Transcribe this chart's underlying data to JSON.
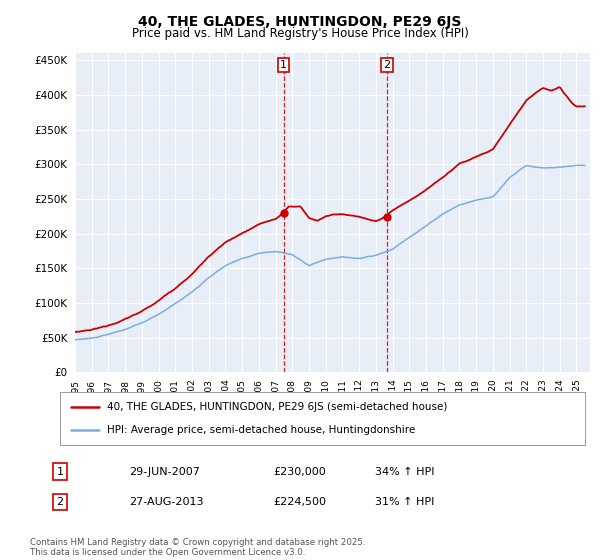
{
  "title": "40, THE GLADES, HUNTINGDON, PE29 6JS",
  "subtitle": "Price paid vs. HM Land Registry's House Price Index (HPI)",
  "legend_label_red": "40, THE GLADES, HUNTINGDON, PE29 6JS (semi-detached house)",
  "legend_label_blue": "HPI: Average price, semi-detached house, Huntingdonshire",
  "sale1_date": "29-JUN-2007",
  "sale1_price": 230000,
  "sale1_pct": "34% ↑ HPI",
  "sale2_date": "27-AUG-2013",
  "sale2_price": 224500,
  "sale2_pct": "31% ↑ HPI",
  "footer": "Contains HM Land Registry data © Crown copyright and database right 2025.\nThis data is licensed under the Open Government Licence v3.0.",
  "ylim": [
    0,
    460000
  ],
  "yticks": [
    0,
    50000,
    100000,
    150000,
    200000,
    250000,
    300000,
    350000,
    400000,
    450000
  ],
  "background_color": "#ffffff",
  "plot_bg_color": "#e8eef8",
  "red_color": "#cc0000",
  "blue_color": "#7aadde",
  "sale1_x_year": 2007.49,
  "sale2_x_year": 2013.65,
  "xmin": 1995.0,
  "xmax": 2025.8
}
